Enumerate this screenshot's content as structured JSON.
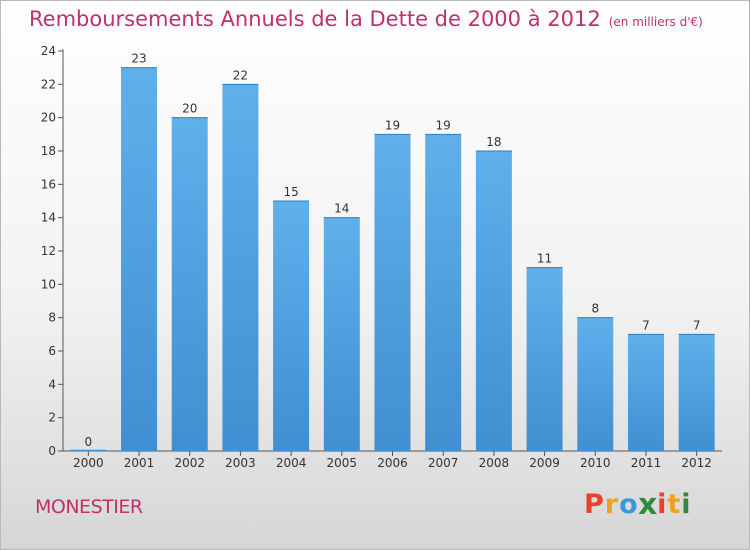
{
  "chart_data": {
    "type": "bar",
    "title": "Remboursements Annuels de la Dette de 2000 à 2012",
    "unit": "(en milliers d'€)",
    "categories": [
      "2000",
      "2001",
      "2002",
      "2003",
      "2004",
      "2005",
      "2006",
      "2007",
      "2008",
      "2009",
      "2010",
      "2011",
      "2012"
    ],
    "values": [
      0,
      23,
      20,
      22,
      15,
      14,
      19,
      19,
      18,
      11,
      8,
      7,
      7
    ],
    "ylim": [
      0,
      24
    ],
    "yticks": [
      0,
      2,
      4,
      6,
      8,
      10,
      12,
      14,
      16,
      18,
      20,
      22,
      24
    ],
    "grid": false,
    "bar_color": "#3f8fd2"
  },
  "commune": "MONESTIER",
  "logo": {
    "letters": [
      "P",
      "r",
      "o",
      "x",
      "i",
      "t",
      "i"
    ],
    "colors": [
      "#e8412c",
      "#f0a020",
      "#3a9ad9",
      "#2e8b3e",
      "#e8412c",
      "#f0a020",
      "#2e8b3e"
    ]
  }
}
